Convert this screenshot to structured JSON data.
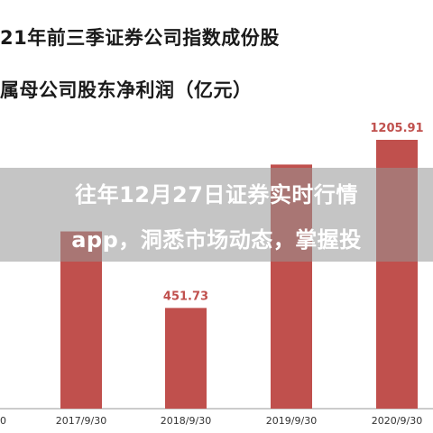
{
  "header": {
    "title": "21年前三季证券公司指数成份股",
    "subtitle": "属母公司股东净利润（亿元）"
  },
  "overlay": {
    "line1": "往年12月27日证券实时行情",
    "line2": "app，洞悉市场动态，掌握投"
  },
  "colors": {
    "bar": "#c0504d",
    "axis": "#999999",
    "label": "#c0504d",
    "tick": "#333333"
  },
  "chart_data": {
    "type": "bar",
    "categories": [
      "0",
      "2017/9/30",
      "2018/9/30",
      "2019/9/30",
      "2020/9/30"
    ],
    "values": [
      null,
      795,
      451.73,
      1095,
      1205.91
    ],
    "data_labels": [
      null,
      null,
      "451.73",
      null,
      "1205.91"
    ],
    "ylim": [
      0,
      1300
    ],
    "title": "",
    "xlabel": "",
    "ylabel": ""
  }
}
